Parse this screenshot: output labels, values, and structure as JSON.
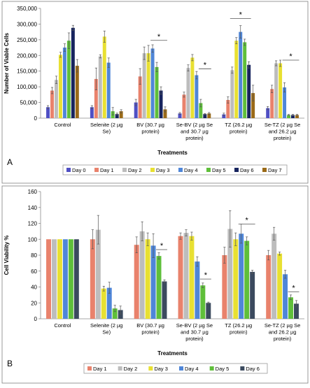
{
  "chart_data": [
    {
      "type": "bar",
      "panel_label": "A",
      "ylabel": "Number of Viable Cells",
      "xlabel": "Treatments",
      "ylim": [
        0,
        350000
      ],
      "yticks": [
        "0",
        "50,000",
        "100,000",
        "150,000",
        "200,000",
        "250,000",
        "300,000",
        "350,000"
      ],
      "ytick_values": [
        0,
        50000,
        100000,
        150000,
        200000,
        250000,
        300000,
        350000
      ],
      "grid": false,
      "legend_position": "bottom",
      "categories": [
        [
          "Control"
        ],
        [
          "Selenite (2 µg",
          "Se)"
        ],
        [
          "BV (30.7 µg",
          "protein)"
        ],
        [
          "Se-BV (2 µg Se",
          "and 30.7 µg",
          "protein)"
        ],
        [
          "TZ (26.2 µg",
          "protein)"
        ],
        [
          "Se-TZ (2 µg Se",
          "and 26.2 µg",
          "protein)"
        ]
      ],
      "series": [
        {
          "name": "Day 0",
          "color": "#4f4fc4",
          "values": [
            35000,
            35000,
            50000,
            15000,
            12000,
            32000
          ],
          "errors": [
            5000,
            5000,
            10000,
            3000,
            4000,
            5000
          ]
        },
        {
          "name": "Day 1",
          "color": "#e9826c",
          "values": [
            88000,
            125000,
            133000,
            75000,
            58000,
            93000
          ],
          "errors": [
            10000,
            35000,
            25000,
            8000,
            10000,
            12000
          ]
        },
        {
          "name": "Day 2",
          "color": "#bdbdbd",
          "values": [
            122000,
            197000,
            207000,
            160000,
            153000,
            175000
          ],
          "errors": [
            12000,
            5000,
            20000,
            10000,
            10000,
            8000
          ]
        },
        {
          "name": "Day 3",
          "color": "#e8e032",
          "values": [
            202000,
            260000,
            207000,
            193000,
            247000,
            175000
          ],
          "errors": [
            8000,
            18000,
            25000,
            10000,
            10000,
            10000
          ]
        },
        {
          "name": "Day 4",
          "color": "#4f86d8",
          "values": [
            225000,
            177000,
            222000,
            137000,
            275000,
            98000
          ],
          "errors": [
            12000,
            15000,
            12000,
            12000,
            20000,
            15000
          ]
        },
        {
          "name": "Day 5",
          "color": "#5fbf3a",
          "values": [
            247000,
            22000,
            163000,
            48000,
            242000,
            10000
          ],
          "errors": [
            25000,
            12000,
            15000,
            12000,
            10000,
            2000
          ]
        },
        {
          "name": "Day 6",
          "color": "#17245e",
          "values": [
            288000,
            13000,
            88000,
            13000,
            170000,
            10000
          ],
          "errors": [
            8000,
            3000,
            12000,
            2000,
            10000,
            2000
          ]
        },
        {
          "name": "Day 7",
          "color": "#9a6a18",
          "values": [
            167000,
            22000,
            28000,
            15000,
            80000,
            10000
          ],
          "errors": [
            20000,
            5000,
            8000,
            3000,
            25000,
            2000
          ]
        }
      ],
      "annotations": [
        {
          "text": "*",
          "group": 2,
          "from_series": 4,
          "to_series": 7,
          "y": 248000
        },
        {
          "text": "*",
          "group": 3,
          "from_series": 5,
          "to_series": 7,
          "y": 157000
        },
        {
          "text": "*",
          "group": 4,
          "from_series": 2,
          "to_series": 6,
          "y": 318000
        },
        {
          "text": "*",
          "group": 5,
          "from_series": 4,
          "to_series": 7,
          "y": 185000
        }
      ]
    },
    {
      "type": "bar",
      "panel_label": "B",
      "ylabel": "Cell Viability %",
      "xlabel": "Treatments",
      "ylim": [
        0,
        160
      ],
      "yticks": [
        "0",
        "20",
        "40",
        "60",
        "80",
        "100",
        "120",
        "140",
        "160"
      ],
      "ytick_values": [
        0,
        20,
        40,
        60,
        80,
        100,
        120,
        140,
        160
      ],
      "grid": false,
      "legend_position": "bottom",
      "categories": [
        [
          "Control"
        ],
        [
          "Selenite (2 µg",
          "Se)"
        ],
        [
          "BV (30.7 µg",
          "protein)"
        ],
        [
          "Se-BV (2 µg Se",
          "and 30.7 µg",
          "protein)"
        ],
        [
          "TZ (26.2 µg",
          "protein)"
        ],
        [
          "Se-TZ (2 µg Se",
          "and 26.2 µg",
          "protein)"
        ]
      ],
      "series": [
        {
          "name": "Day 1",
          "color": "#e9826c",
          "values": [
            100,
            100,
            93,
            104,
            80,
            80
          ],
          "errors": [
            0,
            12,
            10,
            4,
            10,
            6
          ]
        },
        {
          "name": "Day 2",
          "color": "#bdbdbd",
          "values": [
            100,
            112,
            110,
            108,
            113,
            107
          ],
          "errors": [
            0,
            18,
            12,
            4,
            23,
            8
          ]
        },
        {
          "name": "Day 3",
          "color": "#e8e032",
          "values": [
            100,
            38,
            100,
            104,
            100,
            82
          ],
          "errors": [
            0,
            3,
            8,
            5,
            8,
            2
          ]
        },
        {
          "name": "Day 4",
          "color": "#4f86d8",
          "values": [
            100,
            39,
            92,
            72,
            107,
            56
          ],
          "errors": [
            0,
            7,
            15,
            6,
            12,
            5
          ]
        },
        {
          "name": "Day 5",
          "color": "#5fbf3a",
          "values": [
            100,
            13,
            79,
            42,
            98,
            27
          ],
          "errors": [
            0,
            4,
            4,
            3,
            5,
            3
          ]
        },
        {
          "name": "Day 6",
          "color": "#3b4a5e",
          "values": [
            100,
            11,
            47,
            20,
            59,
            19
          ],
          "errors": [
            0,
            5,
            2,
            1,
            2,
            4
          ]
        }
      ],
      "annotations": [
        {
          "text": "*",
          "group": 2,
          "from_series": 4,
          "to_series": 5,
          "y": 87
        },
        {
          "text": "*",
          "group": 3,
          "from_series": 4,
          "to_series": 5,
          "y": 50
        },
        {
          "text": "*",
          "group": 4,
          "from_series": 3,
          "to_series": 5,
          "y": 119
        },
        {
          "text": "*",
          "group": 5,
          "from_series": 4,
          "to_series": 5,
          "y": 34
        }
      ]
    }
  ]
}
